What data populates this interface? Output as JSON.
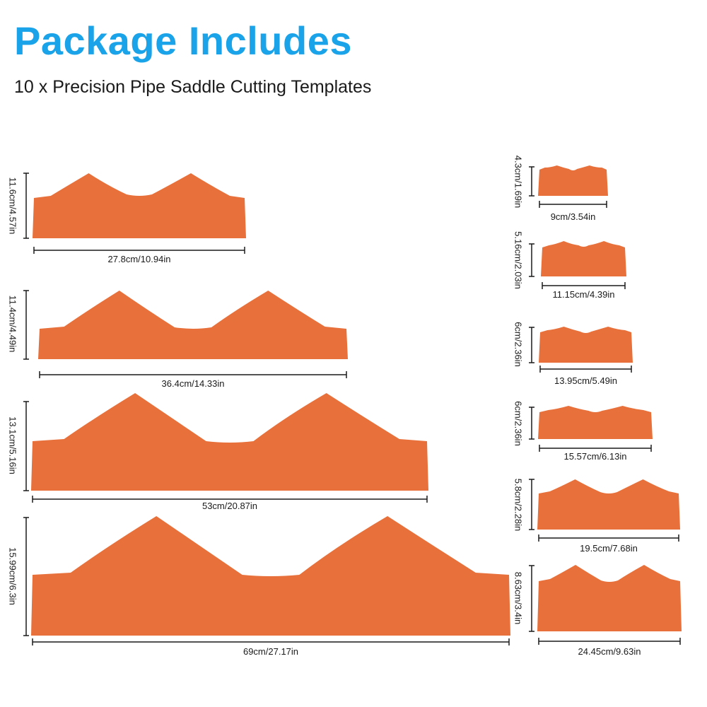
{
  "header": {
    "title": "Package Includes",
    "subtitle": "10 x Precision Pipe Saddle Cutting Templates"
  },
  "colors": {
    "accent": "#1aa3e8",
    "template": "#e8703a",
    "line": "#1a1a1a"
  },
  "templates": [
    {
      "height": "11.6cm/4.57in",
      "width": "27.8cm/10.94in"
    },
    {
      "height": "11.4cm/4.49in",
      "width": "36.4cm/14.33in"
    },
    {
      "height": "13.1cm/5.16in",
      "width": "53cm/20.87in"
    },
    {
      "height": "15.99cm/6.3in",
      "width": "69cm/27.17in"
    },
    {
      "height": "4.3cm/1.69in",
      "width": "9cm/3.54in"
    },
    {
      "height": "5.16cm/2.03in",
      "width": "11.15cm/4.39in"
    },
    {
      "height": "6cm/2.36in",
      "width": "13.95cm/5.49in"
    },
    {
      "height": "6cm/2.36in",
      "width": "15.57cm/6.13in"
    },
    {
      "height": "5.8cm/2.28in",
      "width": "19.5cm/7.68in"
    },
    {
      "height": "8.63cm/3.4in",
      "width": "24.45cm/9.63in"
    }
  ]
}
